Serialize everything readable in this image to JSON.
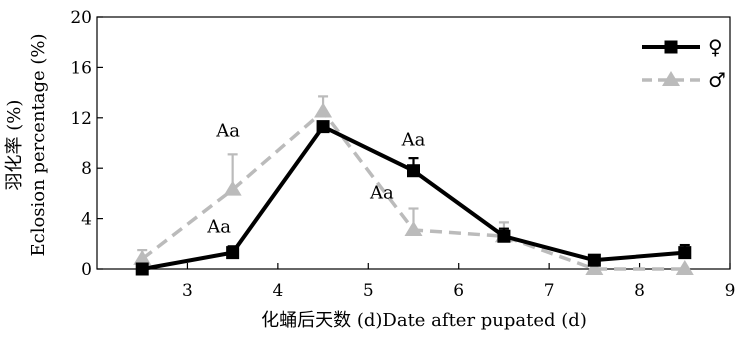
{
  "chart_data": {
    "type": "line",
    "title": "",
    "xlabel": "化蛹后天数 (d)Date after pupated (d)",
    "ylabel_cn": "羽化率 (%)",
    "ylabel_en": "Eclosion percentage (%)",
    "xlim": [
      2,
      9
    ],
    "ylim": [
      0,
      20
    ],
    "xticks": [
      3,
      4,
      5,
      6,
      7,
      8,
      9
    ],
    "yticks": [
      0,
      4,
      8,
      12,
      16,
      20
    ],
    "grid": false,
    "legend_position": "top-right",
    "series": [
      {
        "name": "♀",
        "style": "solid",
        "marker": "square",
        "color": "#000000",
        "x": [
          2.5,
          3.5,
          4.5,
          5.5,
          6.5,
          7.5,
          8.5
        ],
        "y": [
          0.0,
          1.3,
          11.3,
          7.8,
          2.6,
          0.7,
          1.3
        ],
        "err": [
          0.0,
          0.5,
          0.3,
          1.0,
          0.6,
          0.4,
          0.6
        ]
      },
      {
        "name": "♂",
        "style": "dashed",
        "marker": "triangle",
        "color": "#bbbbbb",
        "x": [
          2.5,
          3.5,
          4.5,
          5.5,
          6.5,
          7.5,
          8.5
        ],
        "y": [
          0.8,
          6.3,
          12.5,
          3.1,
          2.6,
          0.0,
          0.0
        ],
        "err": [
          0.7,
          2.8,
          1.2,
          1.7,
          1.1,
          0.0,
          0.0
        ]
      }
    ],
    "annotations": [
      {
        "text": "Aa",
        "x": 3.45,
        "y": 10.5
      },
      {
        "text": "Aa",
        "x": 3.35,
        "y": 2.9
      },
      {
        "text": "Aa",
        "x": 5.5,
        "y": 9.8
      },
      {
        "text": "Aa",
        "x": 5.15,
        "y": 5.6
      }
    ]
  }
}
